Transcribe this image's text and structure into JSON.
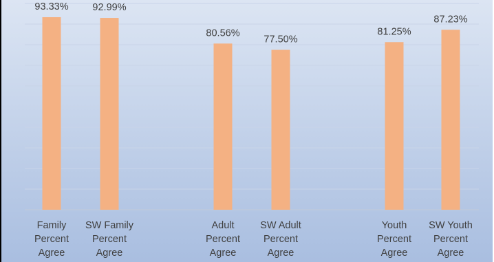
{
  "chart_data": {
    "type": "bar",
    "title": "",
    "xlabel": "",
    "ylabel": "",
    "ylim": [
      0,
      1
    ],
    "grid": true,
    "categories": [
      [
        "Family",
        "Percent",
        "Agree"
      ],
      [
        "SW Family",
        "Percent",
        "Agree"
      ],
      [
        "Adult",
        "Percent",
        "Agree"
      ],
      [
        "SW Adult",
        "Percent",
        "Agree"
      ],
      [
        "Youth",
        "Percent",
        "Agree"
      ],
      [
        "SW Youth",
        "Percent",
        "Agree"
      ]
    ],
    "values": [
      0.9333,
      0.9299,
      0.8056,
      0.775,
      0.8125,
      0.8723
    ],
    "value_labels": [
      "93.33%",
      "92.99%",
      "80.56%",
      "77.50%",
      "81.25%",
      "87.23%"
    ],
    "colors": {
      "bar": "#F4B183",
      "background_top": "#DCE5F3",
      "background_bottom": "#A9BEE0",
      "gridline": "#C9D4E8",
      "text": "#3F3F3F"
    }
  }
}
